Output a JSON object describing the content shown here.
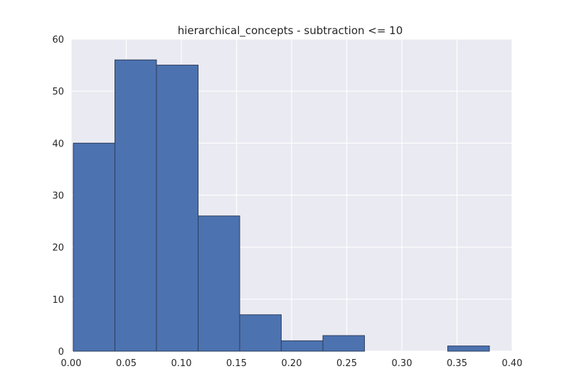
{
  "chart_data": {
    "type": "bar",
    "title": "hierarchical_concepts - subtraction <= 10",
    "xlabel": "",
    "ylabel": "",
    "xlim": [
      0.0,
      0.4
    ],
    "ylim": [
      0,
      60
    ],
    "grid": true,
    "xticks": [
      0.0,
      0.05,
      0.1,
      0.15,
      0.2,
      0.25,
      0.3,
      0.35,
      0.4
    ],
    "xtick_labels": [
      "0.00",
      "0.05",
      "0.10",
      "0.15",
      "0.20",
      "0.25",
      "0.30",
      "0.35",
      "0.40"
    ],
    "yticks": [
      0,
      10,
      20,
      30,
      40,
      50,
      60
    ],
    "ytick_labels": [
      "0",
      "10",
      "20",
      "30",
      "40",
      "50",
      "60"
    ],
    "bins": [
      {
        "x0": 0.002,
        "x1": 0.0397,
        "count": 40
      },
      {
        "x0": 0.0397,
        "x1": 0.0774,
        "count": 56
      },
      {
        "x0": 0.0774,
        "x1": 0.1152,
        "count": 55
      },
      {
        "x0": 0.1152,
        "x1": 0.1529,
        "count": 26
      },
      {
        "x0": 0.1529,
        "x1": 0.1906,
        "count": 7
      },
      {
        "x0": 0.1906,
        "x1": 0.2284,
        "count": 2
      },
      {
        "x0": 0.2284,
        "x1": 0.2661,
        "count": 3
      },
      {
        "x0": 0.2661,
        "x1": 0.3039,
        "count": 0
      },
      {
        "x0": 0.3039,
        "x1": 0.3416,
        "count": 0
      },
      {
        "x0": 0.3416,
        "x1": 0.3794,
        "count": 1
      }
    ],
    "bar_color": "#4c72b0",
    "bar_edge_color": "#2c3e5c",
    "plot_bg_color": "#eaeaf2",
    "grid_color": "#ffffff"
  }
}
